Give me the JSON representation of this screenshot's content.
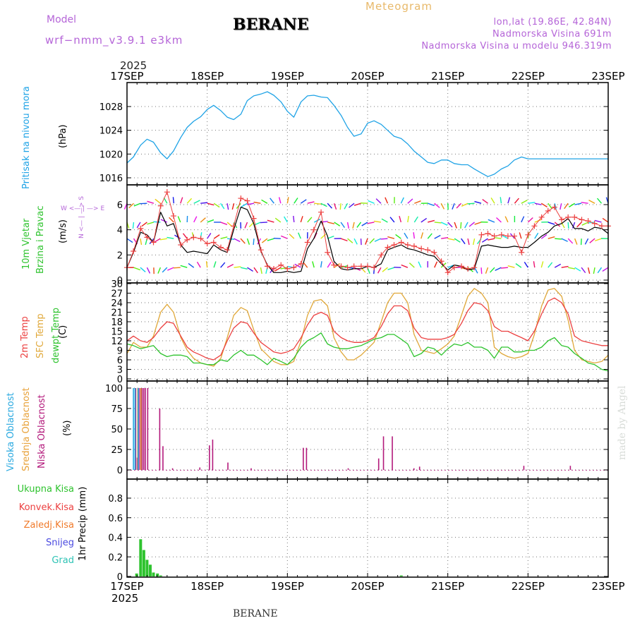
{
  "header": {
    "model_label": "Model",
    "model_name": "wrf−nmm_v3.9.1  e3km",
    "station": "BERANE",
    "chart_type": "Meteogram",
    "lonlat": "lon,lat (19.86E, 42.84N)",
    "elevation": "Nadmorska Visina 691m",
    "model_elevation": "Nadmorska Visina u modelu 946.319m"
  },
  "time_axis": {
    "year": "2025",
    "labels": [
      "17SEP",
      "18SEP",
      "19SEP",
      "20SEP",
      "21SEP",
      "22SEP",
      "23SEP"
    ]
  },
  "footer": {
    "station": "BERANE",
    "year": "2025"
  },
  "watermark": "made by Angel",
  "colors": {
    "pressure": "#1fa3e6",
    "t2m": "#ec4040",
    "tsfc": "#e0a83a",
    "dewpt": "#2ec32e",
    "wind_speed": "#000000",
    "wind_marker": "#ec4040",
    "cloud_high": "#29a9e0",
    "cloud_mid": "#e8a23a",
    "cloud_low": "#b3197b",
    "precip_total": "#2ec32e",
    "frame": "#000000",
    "grid": "#777777"
  },
  "chart_data": [
    {
      "type": "line",
      "panel": "pressure",
      "ylabel_name": "Pritisak na nivou mora",
      "ylabel_unit": "(hPa)",
      "ylim": [
        1015.5,
        1030.8
      ],
      "yticks": [
        1016,
        1020,
        1024,
        1028
      ],
      "x_days": [
        0,
        0.08,
        0.17,
        0.25,
        0.33,
        0.42,
        0.5,
        0.58,
        0.67,
        0.75,
        0.83,
        0.92,
        1.0,
        1.08,
        1.17,
        1.25,
        1.33,
        1.42,
        1.5,
        1.58,
        1.67,
        1.75,
        1.83,
        1.92,
        2.0,
        2.08,
        2.17,
        2.25,
        2.33,
        2.42,
        2.5,
        2.58,
        2.67,
        2.75,
        2.83,
        2.92,
        3.0,
        3.08,
        3.17,
        3.25,
        3.33,
        3.42,
        3.5,
        3.58,
        3.67,
        3.75,
        3.83,
        3.92,
        4.0,
        4.08,
        4.17,
        4.25,
        4.33,
        4.42,
        4.5,
        4.58,
        4.67,
        4.75,
        4.83,
        4.92,
        5.0,
        5.08,
        5.17,
        5.25,
        5.33,
        5.42,
        5.5,
        5.58,
        5.67,
        5.75,
        5.83,
        5.92,
        6.0
      ],
      "series": [
        {
          "name": "MSLP",
          "values": [
            1018.5,
            1019.5,
            1021.5,
            1022.5,
            1022.0,
            1020.2,
            1019.2,
            1020.5,
            1022.8,
            1024.5,
            1025.5,
            1026.3,
            1027.5,
            1028.2,
            1027.3,
            1026.2,
            1025.8,
            1026.7,
            1029.0,
            1029.8,
            1030.1,
            1030.5,
            1029.9,
            1028.8,
            1027.2,
            1026.2,
            1028.8,
            1029.8,
            1029.9,
            1029.6,
            1029.5,
            1028.2,
            1026.5,
            1024.5,
            1023.0,
            1023.4,
            1025.2,
            1025.6,
            1025.0,
            1024.0,
            1023.0,
            1022.6,
            1021.7,
            1020.5,
            1019.5,
            1018.6,
            1018.4,
            1019.0,
            1019.0,
            1018.4,
            1018.2,
            1018.2,
            1017.5,
            1016.8,
            1016.2,
            1016.6,
            1017.5,
            1018.0,
            1019.0,
            1019.5,
            1019.2,
            1019.2,
            1019.2,
            1019.2,
            1019.2,
            1019.2,
            1019.2,
            1019.2,
            1019.2,
            1019.2,
            1019.2,
            1019.2,
            1019.2
          ]
        }
      ]
    },
    {
      "type": "line",
      "panel": "wind",
      "ylabel_name": "10m Vjetar",
      "ylabel_name2": "Brzina i Pravac",
      "ylabel_unit": "(m/s)",
      "compass_ns": "N <— | —> S",
      "compass_we": "W <— | —> E",
      "ylim": [
        0,
        7.2
      ],
      "yticks": [
        0,
        2,
        4,
        6
      ],
      "x_days": [
        0,
        0.08,
        0.17,
        0.25,
        0.33,
        0.42,
        0.5,
        0.58,
        0.67,
        0.75,
        0.83,
        0.92,
        1.0,
        1.08,
        1.17,
        1.25,
        1.33,
        1.42,
        1.5,
        1.58,
        1.67,
        1.75,
        1.83,
        1.92,
        2.0,
        2.08,
        2.17,
        2.25,
        2.33,
        2.42,
        2.5,
        2.58,
        2.67,
        2.75,
        2.83,
        2.92,
        3.0,
        3.08,
        3.17,
        3.25,
        3.33,
        3.42,
        3.5,
        3.58,
        3.67,
        3.75,
        3.83,
        3.92,
        4.0,
        4.08,
        4.17,
        4.25,
        4.33,
        4.42,
        4.5,
        4.58,
        4.67,
        4.75,
        4.83,
        4.92,
        5.0,
        5.08,
        5.17,
        5.25,
        5.33,
        5.42,
        5.5,
        5.58,
        5.67,
        5.75,
        5.83,
        5.92,
        6.0
      ],
      "series": [
        {
          "name": "Brzina",
          "values": [
            1.0,
            2.2,
            3.8,
            3.6,
            3.0,
            5.4,
            4.3,
            4.5,
            2.8,
            2.2,
            2.3,
            2.2,
            2.1,
            2.8,
            2.4,
            2.2,
            4.0,
            5.8,
            5.6,
            4.5,
            2.3,
            1.2,
            0.6,
            0.6,
            0.7,
            0.6,
            0.7,
            2.5,
            3.3,
            4.7,
            3.5,
            1.5,
            0.9,
            0.8,
            0.9,
            0.9,
            1.1,
            1.0,
            1.3,
            2.4,
            2.6,
            2.8,
            2.5,
            2.4,
            2.2,
            2.0,
            1.9,
            1.3,
            0.8,
            1.2,
            1.1,
            0.8,
            0.9,
            2.7,
            2.8,
            2.7,
            2.6,
            2.6,
            2.7,
            2.6,
            2.6,
            3.0,
            3.5,
            3.8,
            4.3,
            4.5,
            4.9,
            4.1,
            4.1,
            3.9,
            4.2,
            4.1,
            3.7
          ]
        },
        {
          "name": "Brzina_markeri",
          "values": [
            1.0,
            2.3,
            4.1,
            3.4,
            3.0,
            5.9,
            7.0,
            5.1,
            2.8,
            3.2,
            3.4,
            3.3,
            2.9,
            3.0,
            2.6,
            2.4,
            4.3,
            6.5,
            6.3,
            4.9,
            2.4,
            1.1,
            0.9,
            1.2,
            0.9,
            1.0,
            1.3,
            3.0,
            4.0,
            5.4,
            2.2,
            1.2,
            1.1,
            1.0,
            1.1,
            1.1,
            1.1,
            1.0,
            2.0,
            2.6,
            2.8,
            3.0,
            2.8,
            2.7,
            2.5,
            2.4,
            2.2,
            1.5,
            0.6,
            1.0,
            1.1,
            0.9,
            1.0,
            3.6,
            3.7,
            3.5,
            3.6,
            3.5,
            3.5,
            2.2,
            3.6,
            4.3,
            5.0,
            5.5,
            5.8,
            4.8,
            5.0,
            5.0,
            4.8,
            4.7,
            4.5,
            4.3,
            4.3
          ]
        }
      ]
    },
    {
      "type": "line",
      "panel": "temperature",
      "ylabel_t2m": "2m Temp",
      "ylabel_tsfc": "SFC Temp",
      "ylabel_dew": "dewpt Temp",
      "ylabel_unit": "(C)",
      "ylim": [
        0,
        30
      ],
      "yticks": [
        0,
        3,
        6,
        9,
        12,
        15,
        18,
        21,
        24,
        27,
        30
      ],
      "x_days": [
        0,
        0.08,
        0.17,
        0.25,
        0.33,
        0.42,
        0.5,
        0.58,
        0.67,
        0.75,
        0.83,
        0.92,
        1.0,
        1.08,
        1.17,
        1.25,
        1.33,
        1.42,
        1.5,
        1.58,
        1.67,
        1.75,
        1.83,
        1.92,
        2.0,
        2.08,
        2.17,
        2.25,
        2.33,
        2.42,
        2.5,
        2.58,
        2.67,
        2.75,
        2.83,
        2.92,
        3.0,
        3.08,
        3.17,
        3.25,
        3.33,
        3.42,
        3.5,
        3.58,
        3.67,
        3.75,
        3.83,
        3.92,
        4.0,
        4.08,
        4.17,
        4.25,
        4.33,
        4.42,
        4.5,
        4.58,
        4.67,
        4.75,
        4.83,
        4.92,
        5.0,
        5.08,
        5.17,
        5.25,
        5.33,
        5.42,
        5.5,
        5.58,
        5.67,
        5.75,
        5.83,
        5.92,
        6.0
      ],
      "series": [
        {
          "name": "2m Temp",
          "values": [
            12.0,
            13.5,
            12.0,
            11.5,
            13.0,
            16.0,
            18.0,
            17.5,
            13.5,
            10.0,
            8.5,
            7.5,
            6.5,
            6.0,
            7.5,
            12.0,
            16.0,
            18.0,
            17.5,
            14.5,
            11.5,
            10.0,
            8.5,
            8.0,
            8.5,
            9.5,
            13.0,
            17.0,
            20.0,
            21.0,
            20.0,
            15.0,
            13.0,
            12.0,
            11.5,
            11.5,
            12.0,
            13.0,
            16.5,
            20.5,
            23.0,
            23.0,
            21.5,
            16.0,
            13.0,
            12.5,
            12.5,
            12.5,
            13.0,
            14.0,
            17.5,
            21.5,
            24.0,
            23.5,
            21.5,
            16.5,
            15.0,
            15.0,
            14.0,
            13.0,
            12.0,
            15.0,
            20.5,
            24.5,
            25.5,
            24.0,
            20.5,
            13.5,
            12.0,
            11.5,
            11.0,
            10.5,
            10.5
          ]
        },
        {
          "name": "SFC Temp",
          "values": [
            8.0,
            11.5,
            10.0,
            10.0,
            13.5,
            21.0,
            23.5,
            21.0,
            13.0,
            9.0,
            6.5,
            5.0,
            4.5,
            4.0,
            6.5,
            13.0,
            20.0,
            22.5,
            21.5,
            15.5,
            9.5,
            7.5,
            5.5,
            4.5,
            4.5,
            5.5,
            12.0,
            20.0,
            24.5,
            25.0,
            23.0,
            13.0,
            8.5,
            6.0,
            6.0,
            7.5,
            9.5,
            11.5,
            18.0,
            24.0,
            27.0,
            27.0,
            24.0,
            14.0,
            9.0,
            8.5,
            8.0,
            9.5,
            11.0,
            13.5,
            20.0,
            26.0,
            28.5,
            27.0,
            24.0,
            10.0,
            8.0,
            7.0,
            6.5,
            7.0,
            8.0,
            14.0,
            23.0,
            28.0,
            28.5,
            26.0,
            18.5,
            9.0,
            6.0,
            5.5,
            5.0,
            5.5,
            7.5
          ]
        },
        {
          "name": "dewpt Temp",
          "values": [
            11.0,
            10.5,
            9.5,
            10.0,
            10.5,
            8.0,
            7.0,
            7.5,
            7.5,
            7.0,
            5.0,
            5.0,
            4.5,
            4.5,
            6.0,
            5.5,
            7.5,
            9.0,
            7.5,
            7.5,
            6.0,
            4.5,
            6.5,
            5.5,
            4.5,
            6.5,
            10.0,
            12.0,
            13.0,
            14.5,
            11.0,
            10.0,
            9.5,
            9.5,
            10.0,
            10.5,
            11.5,
            12.5,
            13.0,
            14.0,
            14.0,
            12.5,
            11.0,
            7.0,
            8.0,
            10.0,
            9.5,
            7.5,
            9.5,
            11.0,
            10.5,
            11.5,
            10.0,
            10.0,
            9.0,
            6.5,
            10.0,
            10.0,
            8.5,
            8.5,
            9.0,
            9.0,
            10.0,
            12.0,
            13.0,
            10.5,
            10.0,
            8.0,
            6.5,
            5.0,
            4.5,
            3.0,
            2.5
          ]
        }
      ]
    },
    {
      "type": "bar",
      "panel": "cloud",
      "ylabel_high": "Visoka Oblacnost",
      "ylabel_mid": "Srednja Oblacnost",
      "ylabel_low": "Niska Oblacnost",
      "ylabel_unit": "(%)",
      "ylim": [
        0,
        105
      ],
      "yticks": [
        0,
        25,
        50,
        75,
        100
      ],
      "x_days": [
        0.08,
        0.1,
        0.12,
        0.14,
        0.16,
        0.18,
        0.2,
        0.23,
        0.38,
        0.42,
        0.54,
        0.88,
        1.0,
        1.04,
        1.23,
        1.52,
        2.17,
        2.21,
        2.73,
        3.11,
        3.17,
        3.28,
        3.55,
        3.62,
        4.92,
        5.5
      ],
      "series": [
        {
          "name": "Visoka Oblacnost",
          "values": [
            100,
            100,
            0,
            100,
            0,
            0,
            0,
            0,
            0,
            0,
            0,
            0,
            0,
            0,
            0,
            0,
            0,
            0,
            0,
            0,
            0,
            0,
            0,
            0,
            0,
            0
          ]
        },
        {
          "name": "Srednja Oblacnost",
          "values": [
            0,
            0,
            100,
            0,
            100,
            0,
            0,
            0,
            0,
            0,
            0,
            0,
            0,
            0,
            0,
            0,
            0,
            0,
            0,
            0,
            0,
            0,
            0,
            0,
            0,
            0
          ]
        },
        {
          "name": "Niska Oblacnost",
          "values": [
            100,
            15,
            100,
            100,
            100,
            100,
            100,
            100,
            75,
            29,
            2,
            3,
            30,
            37,
            9,
            2,
            27,
            27,
            2,
            14,
            41,
            41,
            2,
            4,
            5,
            5
          ]
        }
      ]
    },
    {
      "type": "bar",
      "panel": "precip",
      "legend": [
        "Ukupna Kisa",
        "Konvek.Kisa",
        "Zaledj.Kisa",
        "Snijeg",
        "Grad"
      ],
      "ylabel": "1hr Precip (mm)",
      "ylim": [
        0,
        1.0
      ],
      "yticks": [
        0,
        0.2,
        0.4,
        0.6,
        0.8
      ],
      "x_days": [
        0.12,
        0.17,
        0.21,
        0.25,
        0.29,
        0.33,
        0.38,
        0.42,
        3.42
      ],
      "series": [
        {
          "name": "Ukupna Kisa",
          "values": [
            0.03,
            0.38,
            0.27,
            0.17,
            0.12,
            0.04,
            0.03,
            0.01,
            0.01
          ]
        }
      ]
    }
  ]
}
